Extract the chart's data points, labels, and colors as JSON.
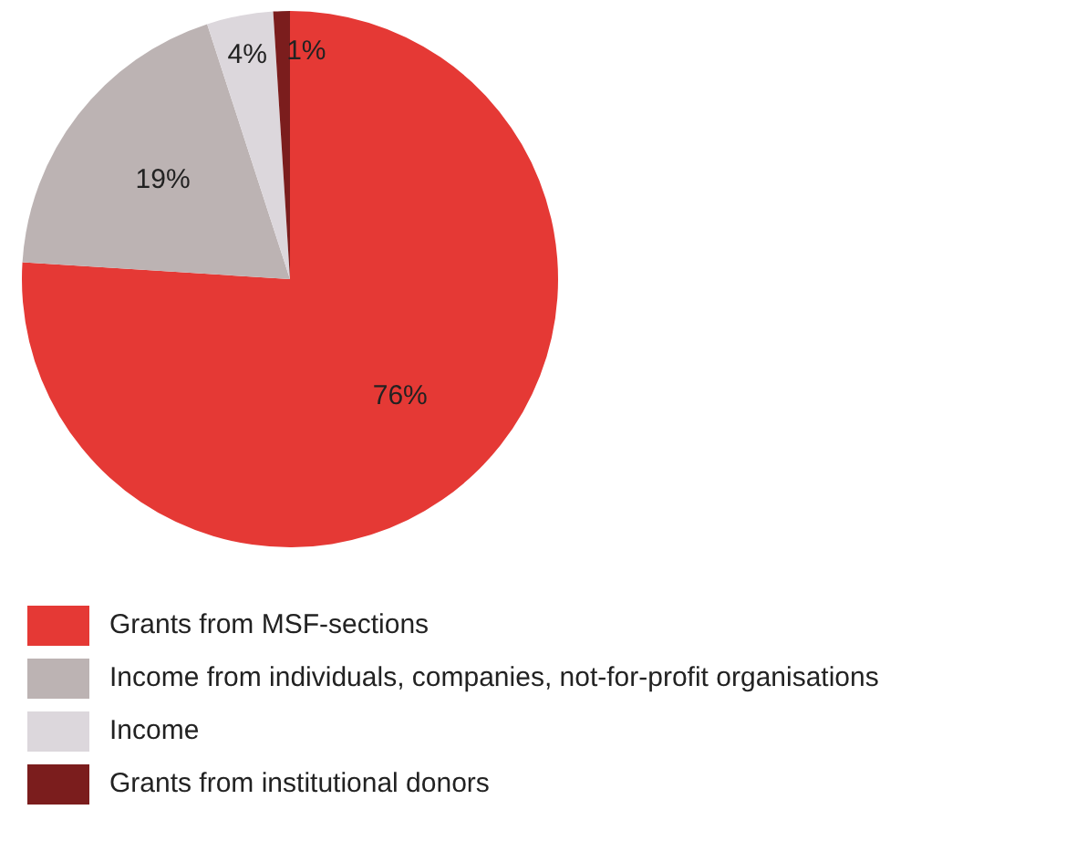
{
  "chart_data": {
    "type": "pie",
    "categories": [
      "Grants from MSF-sections",
      "Income from individuals, companies, not-for-profit organisations",
      "Income",
      "Grants from institutional donors"
    ],
    "values": [
      76,
      19,
      4,
      1
    ],
    "value_labels": [
      "76%",
      "19%",
      "4%",
      "1%"
    ],
    "colors": [
      "#e53935",
      "#bcb3b3",
      "#dcd7dc",
      "#7b1d1d"
    ],
    "legend": "bottom"
  }
}
